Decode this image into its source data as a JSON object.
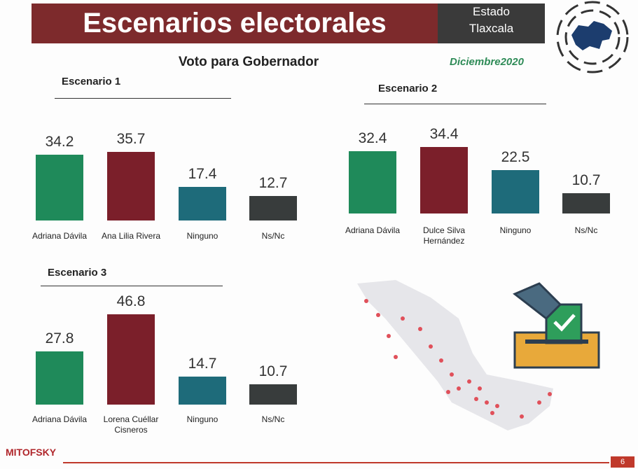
{
  "header": {
    "title": "Escenarios electorales",
    "state_label": "Estado",
    "state": "Tlaxcala",
    "subtitle": "Voto para Gobernador",
    "date": "Diciembre2020"
  },
  "footer": {
    "brand": "MITOFSKY",
    "page": "6"
  },
  "chart_data": [
    {
      "type": "bar",
      "title": "Escenario 1",
      "categories": [
        "Adriana Dávila",
        "Ana Lilia Rivera",
        "Ninguno",
        "Ns/Nc"
      ],
      "values": [
        34.2,
        35.7,
        17.4,
        12.7
      ],
      "colors": [
        "#1f8a5a",
        "#7b1f2a",
        "#1e6b7a",
        "#383c3c"
      ]
    },
    {
      "type": "bar",
      "title": "Escenario 2",
      "categories": [
        "Adriana Dávila",
        "Dulce Silva Hernández",
        "Ninguno",
        "Ns/Nc"
      ],
      "values": [
        32.4,
        34.4,
        22.5,
        10.7
      ],
      "colors": [
        "#1f8a5a",
        "#7b1f2a",
        "#1e6b7a",
        "#383c3c"
      ]
    },
    {
      "type": "bar",
      "title": "Escenario 3",
      "categories": [
        "Adriana Dávila",
        "Lorena Cuéllar Cisneros",
        "Ninguno",
        "Ns/Nc"
      ],
      "values": [
        27.8,
        46.8,
        14.7,
        10.7
      ],
      "colors": [
        "#1f8a5a",
        "#7b1f2a",
        "#1e6b7a",
        "#383c3c"
      ]
    }
  ]
}
